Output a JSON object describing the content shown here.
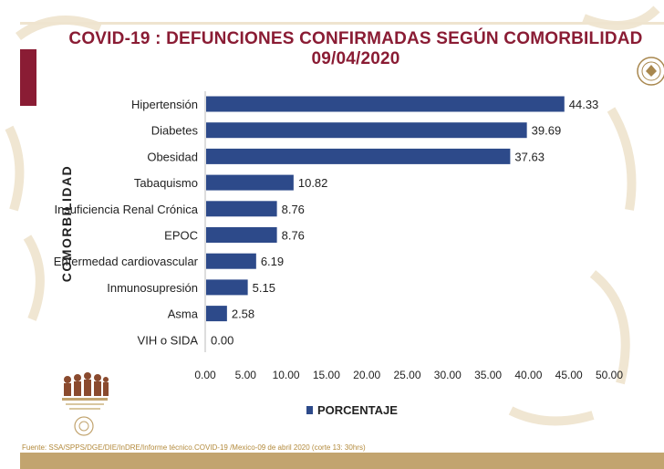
{
  "header": {
    "title_line1": "COVID-19 : DEFUNCIONES CONFIRMADAS SEGÚN COMORBILIDAD",
    "title_line2": "09/04/2020"
  },
  "axis_label": "COMORBILIDAD",
  "legend": {
    "label": "PORCENTAJE"
  },
  "source": "Fuente: SSA/SPPS/DGE/DIE/InDRE/Informe técnico.COVID-19 /Mexico-09 de abril 2020 (corte 13: 30hrs)",
  "colors": {
    "bar": "#2d4a8a",
    "title": "#8a1c34",
    "gold": "#c2a46f"
  },
  "chart_data": {
    "type": "bar",
    "orientation": "horizontal",
    "title": "COVID-19 : DEFUNCIONES CONFIRMADAS SEGÚN COMORBILIDAD",
    "subtitle": "09/04/2020",
    "ylabel": "COMORBILIDAD",
    "categories": [
      "Hipertensión",
      "Diabetes",
      "Obesidad",
      "Tabaquismo",
      "Insuficiencia Renal Crónica",
      "EPOC",
      "Enfermedad cardiovascular",
      "Inmunosupresión",
      "Asma",
      "VIH o SIDA"
    ],
    "series": [
      {
        "name": "PORCENTAJE",
        "values": [
          44.33,
          39.69,
          37.63,
          10.82,
          8.76,
          8.76,
          6.19,
          5.15,
          2.58,
          0.0
        ]
      }
    ],
    "value_labels": [
      "44.33",
      "39.69",
      "37.63",
      "10.82",
      "8.76",
      "8.76",
      "6.19",
      "5.15",
      "2.58",
      "0.00"
    ],
    "xlim": [
      0,
      50
    ],
    "xticks": [
      "0.00",
      "5.00",
      "10.00",
      "15.00",
      "20.00",
      "25.00",
      "30.00",
      "35.00",
      "40.00",
      "45.00",
      "50.00"
    ],
    "grid": false,
    "legend_position": "bottom"
  }
}
